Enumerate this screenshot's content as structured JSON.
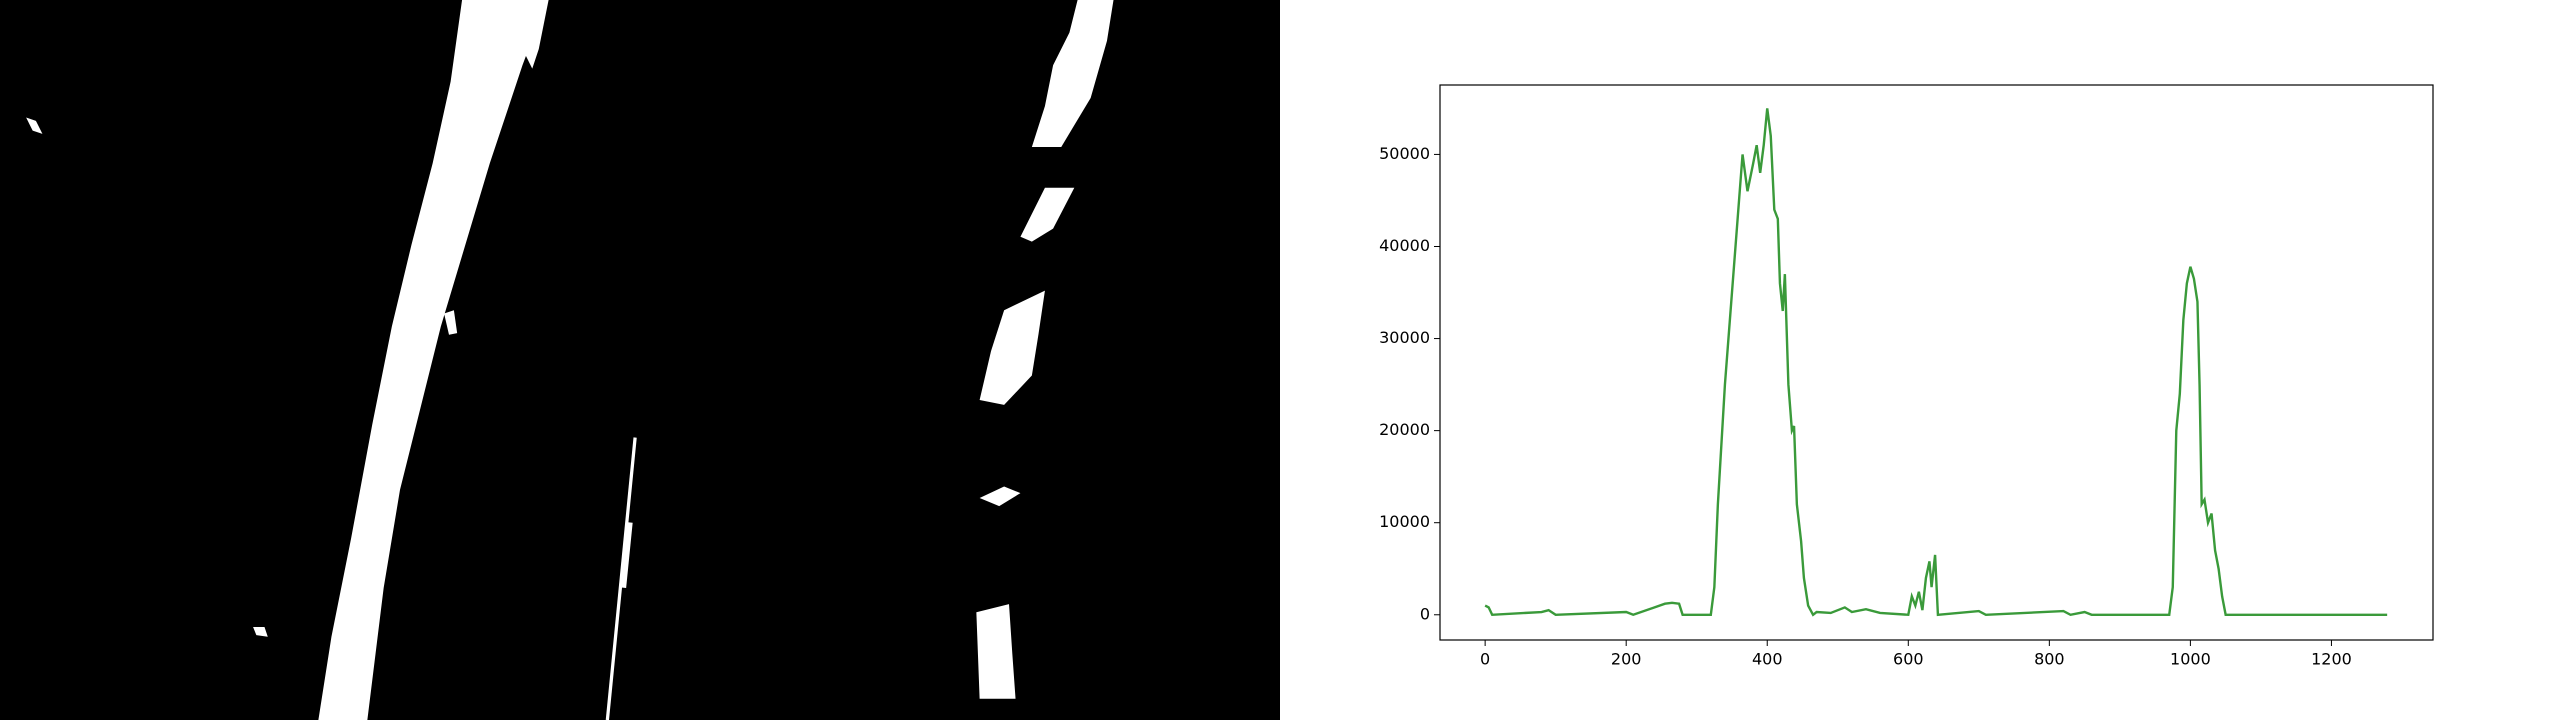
{
  "chart_data": {
    "type": "line",
    "x": [
      0,
      5,
      10,
      80,
      90,
      100,
      200,
      210,
      255,
      265,
      275,
      280,
      320,
      325,
      330,
      340,
      350,
      360,
      365,
      372,
      380,
      385,
      390,
      395,
      400,
      405,
      410,
      415,
      418,
      422,
      425,
      430,
      435,
      438,
      442,
      448,
      452,
      458,
      465,
      470,
      490,
      510,
      520,
      540,
      560,
      600,
      605,
      610,
      615,
      620,
      625,
      630,
      633,
      638,
      642,
      700,
      710,
      820,
      830,
      850,
      860,
      970,
      975,
      980,
      985,
      990,
      995,
      1000,
      1005,
      1010,
      1013,
      1016,
      1020,
      1025,
      1030,
      1035,
      1040,
      1045,
      1050,
      1279
    ],
    "values": [
      1000,
      800,
      0,
      300,
      500,
      0,
      300,
      0,
      1200,
      1300,
      1200,
      0,
      0,
      3000,
      12000,
      25000,
      35000,
      45000,
      50000,
      46000,
      49000,
      51000,
      48000,
      51000,
      55000,
      52000,
      44000,
      43000,
      36000,
      33000,
      37000,
      25000,
      20000,
      20500,
      12000,
      8000,
      4000,
      1000,
      0,
      300,
      200,
      800,
      300,
      600,
      200,
      0,
      2000,
      1000,
      2500,
      500,
      4000,
      5800,
      3000,
      6500,
      0,
      400,
      0,
      400,
      0,
      300,
      0,
      0,
      3000,
      20000,
      24000,
      32000,
      36000,
      37800,
      36500,
      34000,
      25000,
      12000,
      12500,
      10000,
      11000,
      7000,
      5000,
      2000,
      0,
      0
    ],
    "color": "#3a9a3a",
    "xlim": [
      -64,
      1344
    ],
    "xticks": [
      0,
      200,
      400,
      600,
      800,
      1000,
      1200
    ],
    "ylim": [
      -2740,
      57540
    ],
    "yticks": [
      0,
      10000,
      20000,
      30000,
      40000,
      50000
    ]
  }
}
